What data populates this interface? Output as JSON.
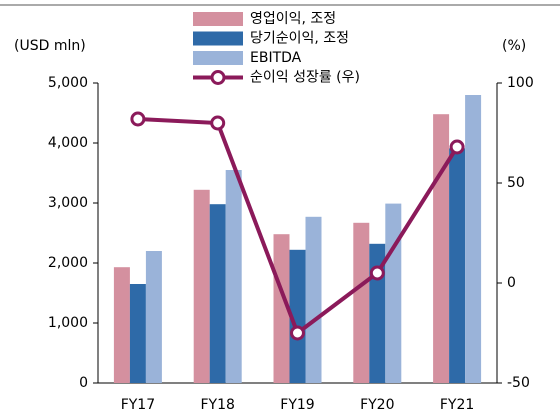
{
  "chart_data": {
    "type": "bar",
    "categories": [
      "FY17",
      "FY18",
      "FY19",
      "FY20",
      "FY21"
    ],
    "y_label": "(USD mln)",
    "y2_label": "(%)",
    "series": [
      {
        "name": "영업이익, 조정",
        "color": "#d4909f",
        "values": [
          1930,
          3220,
          2480,
          2670,
          4480
        ]
      },
      {
        "name": "당기순이익, 조정",
        "color": "#2e6aa8",
        "values": [
          1650,
          2980,
          2220,
          2320,
          3910
        ]
      },
      {
        "name": "EBITDA",
        "color": "#9ab3d9",
        "values": [
          2200,
          3550,
          2770,
          2990,
          4800
        ]
      },
      {
        "name": "순이익 성장률 (우)",
        "color": "#8b1a5a",
        "type": "line",
        "axis": "y2",
        "values": [
          82,
          80,
          -25,
          5,
          68
        ]
      }
    ],
    "ylim": [
      0,
      5000
    ],
    "yticks": [
      0,
      {
        "value": 1000,
        "label": "1,000"
      },
      {
        "value": 2000,
        "label": "2,000"
      },
      {
        "value": 3000,
        "label": "3,000"
      },
      {
        "value": 4000,
        "label": "4,000"
      },
      {
        "value": 5000,
        "label": "5,000"
      }
    ],
    "y2lim": [
      -50,
      100
    ],
    "y2ticks": [
      -50,
      0,
      50,
      100
    ],
    "legend": "top"
  }
}
